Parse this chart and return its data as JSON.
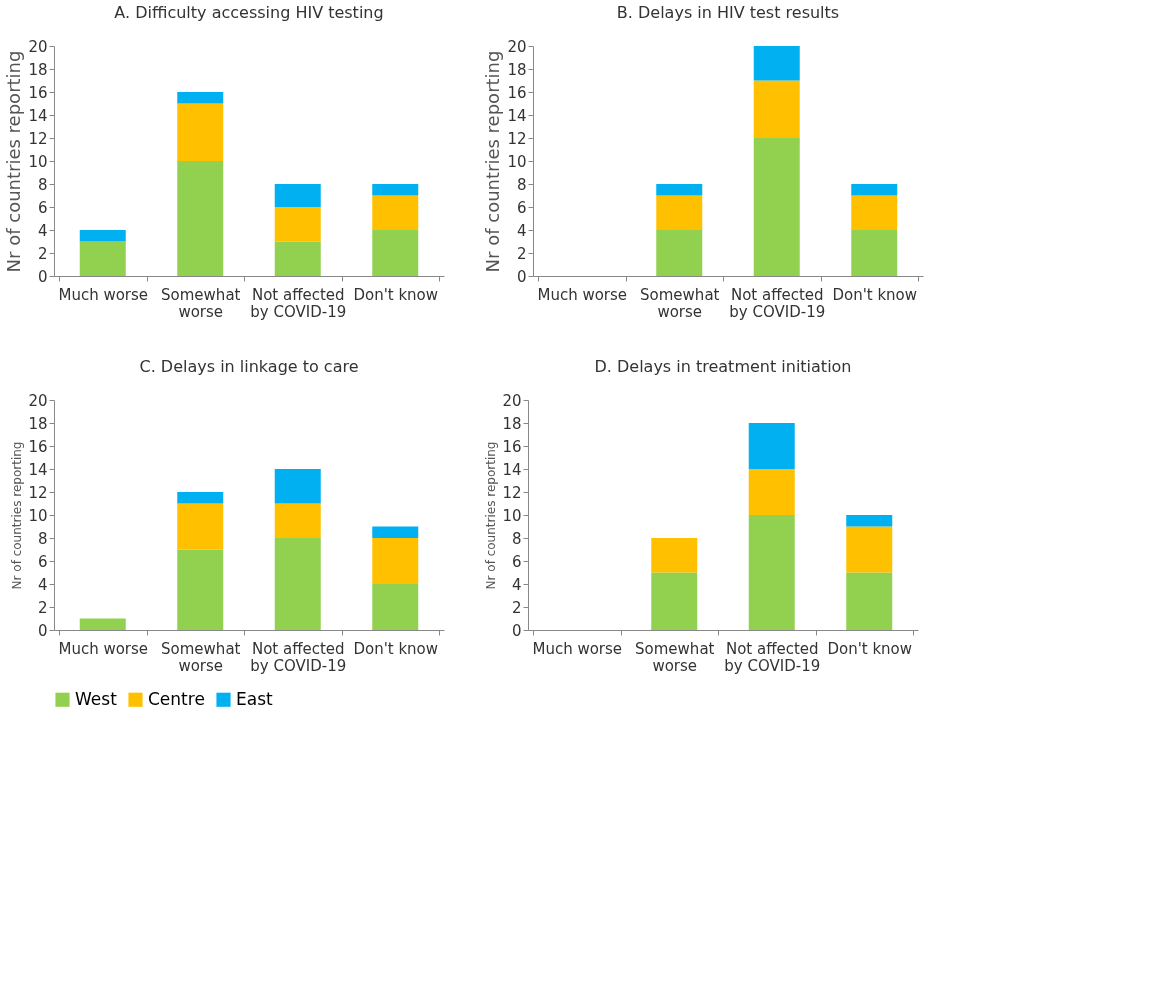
{
  "chart_data": [
    {
      "type": "bar",
      "stacked": true,
      "title": "A. Difficulty accessing HIV testing",
      "ylabel": "Nr of countries reporting",
      "categories": [
        "Much worse",
        "Somewhat worse",
        "Not affected by COVID-19",
        "Don't know"
      ],
      "ylim": [
        0,
        20
      ],
      "yticks": [
        0,
        2,
        4,
        6,
        8,
        10,
        12,
        14,
        16,
        18,
        20
      ],
      "grid": false,
      "legend": "bottom",
      "series": [
        {
          "name": "West",
          "color": "#92d050",
          "values": [
            3,
            10,
            3,
            4
          ]
        },
        {
          "name": "Centre",
          "color": "#ffc000",
          "values": [
            0,
            5,
            3,
            3
          ]
        },
        {
          "name": "East",
          "color": "#00b0f0",
          "values": [
            1,
            1,
            2,
            1
          ]
        }
      ]
    },
    {
      "type": "bar",
      "stacked": true,
      "title": "B. Delays in HIV test results",
      "ylabel": "Nr of countries reporting",
      "categories": [
        "Much worse",
        "Somewhat worse",
        "Not affected by COVID-19",
        "Don't know"
      ],
      "ylim": [
        0,
        20
      ],
      "yticks": [
        0,
        2,
        4,
        6,
        8,
        10,
        12,
        14,
        16,
        18,
        20
      ],
      "grid": false,
      "legend": "bottom",
      "series": [
        {
          "name": "West",
          "color": "#92d050",
          "values": [
            0,
            4,
            12,
            4
          ]
        },
        {
          "name": "Centre",
          "color": "#ffc000",
          "values": [
            0,
            3,
            5,
            3
          ]
        },
        {
          "name": "East",
          "color": "#00b0f0",
          "values": [
            0,
            1,
            3,
            1
          ]
        }
      ]
    },
    {
      "type": "bar",
      "stacked": true,
      "title": "C. Delays in linkage to care",
      "ylabel": "Nr of countries reporting",
      "categories": [
        "Much worse",
        "Somewhat worse",
        "Not affected by COVID-19",
        "Don't know"
      ],
      "ylim": [
        0,
        20
      ],
      "yticks": [
        0,
        2,
        4,
        6,
        8,
        10,
        12,
        14,
        16,
        18,
        20
      ],
      "grid": false,
      "legend": "bottom",
      "series": [
        {
          "name": "West",
          "color": "#92d050",
          "values": [
            1,
            7,
            8,
            4
          ]
        },
        {
          "name": "Centre",
          "color": "#ffc000",
          "values": [
            0,
            4,
            3,
            4
          ]
        },
        {
          "name": "East",
          "color": "#00b0f0",
          "values": [
            0,
            1,
            3,
            1
          ]
        }
      ]
    },
    {
      "type": "bar",
      "stacked": true,
      "title": "D. Delays in treatment initiation",
      "ylabel": "Nr of countries reporting",
      "categories": [
        "Much worse",
        "Somewhat worse",
        "Not affected by COVID-19",
        "Don't know"
      ],
      "ylim": [
        0,
        20
      ],
      "yticks": [
        0,
        2,
        4,
        6,
        8,
        10,
        12,
        14,
        16,
        18,
        20
      ],
      "grid": false,
      "legend": "bottom",
      "series": [
        {
          "name": "West",
          "color": "#92d050",
          "values": [
            0,
            5,
            10,
            5
          ]
        },
        {
          "name": "Centre",
          "color": "#ffc000",
          "values": [
            0,
            3,
            4,
            4
          ]
        },
        {
          "name": "East",
          "color": "#00b0f0",
          "values": [
            0,
            0,
            4,
            1
          ]
        }
      ]
    }
  ]
}
